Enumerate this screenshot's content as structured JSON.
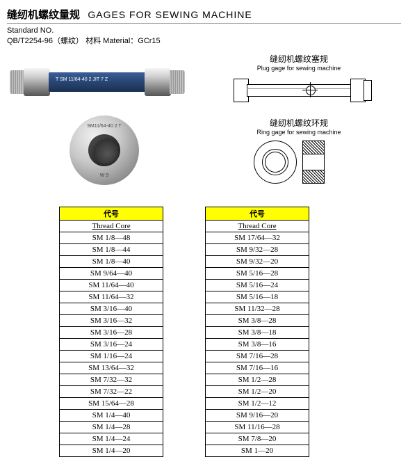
{
  "title_cn": "缝纫机螺纹量规",
  "title_en": "GAGES FOR SEWING MACHINE",
  "standard_label": "Standard  NO.",
  "standard_line": "QB/T2254-96（螺纹）  材料 Material：GCr15",
  "plug_label_cn": "缝纫机螺纹塞规",
  "plug_label_en": "Plug gage for sewing machine",
  "ring_label_cn": "缝纫机螺纹环规",
  "ring_label_en": "Ring gage for sewing machine",
  "plug_body_text": "T SM 11/64-40 2 JIT 7  Z",
  "ring_photo_text": "SM11/64-40 2 T",
  "ring_photo_text2": "W 9",
  "table_header1": "代号",
  "table_header2": "Thread Core",
  "table1_rows": [
    "SM 1/8—48",
    "SM 1/8—44",
    "SM 1/8—40",
    "SM 9/64—40",
    "SM 11/64—40",
    "SM 11/64—32",
    "SM 3/16—40",
    "SM 3/16—32",
    "SM 3/16—28",
    "SM 3/16—24",
    "SM 1/16—24",
    "SM 13/64—32",
    "SM 7/32—32",
    "SM 7/32—22",
    "SM 15/64—28",
    "SM 1/4—40",
    "SM 1/4—28",
    "SM 1/4—24",
    "SM 1/4—20"
  ],
  "table2_rows": [
    "SM 17/64—32",
    "SM 9/32—28",
    "SM 9/32—20",
    "SM 5/16—28",
    "SM 5/16—24",
    "SM 5/16—18",
    "SM 11/32—28",
    "SM 3/8—28",
    "SM 3/8—18",
    "SM 3/8—16",
    "SM 7/16—28",
    "SM 7/16—16",
    "SM 1/2—28",
    "SM 1/2—20",
    "SM 1/2—12",
    "SM 9/16—20",
    "SM 11/16—28",
    "SM 7/8—20",
    "SM 1—20"
  ],
  "colors": {
    "header_bg": "#ffff00",
    "plug_body": "#2b4a7a"
  }
}
